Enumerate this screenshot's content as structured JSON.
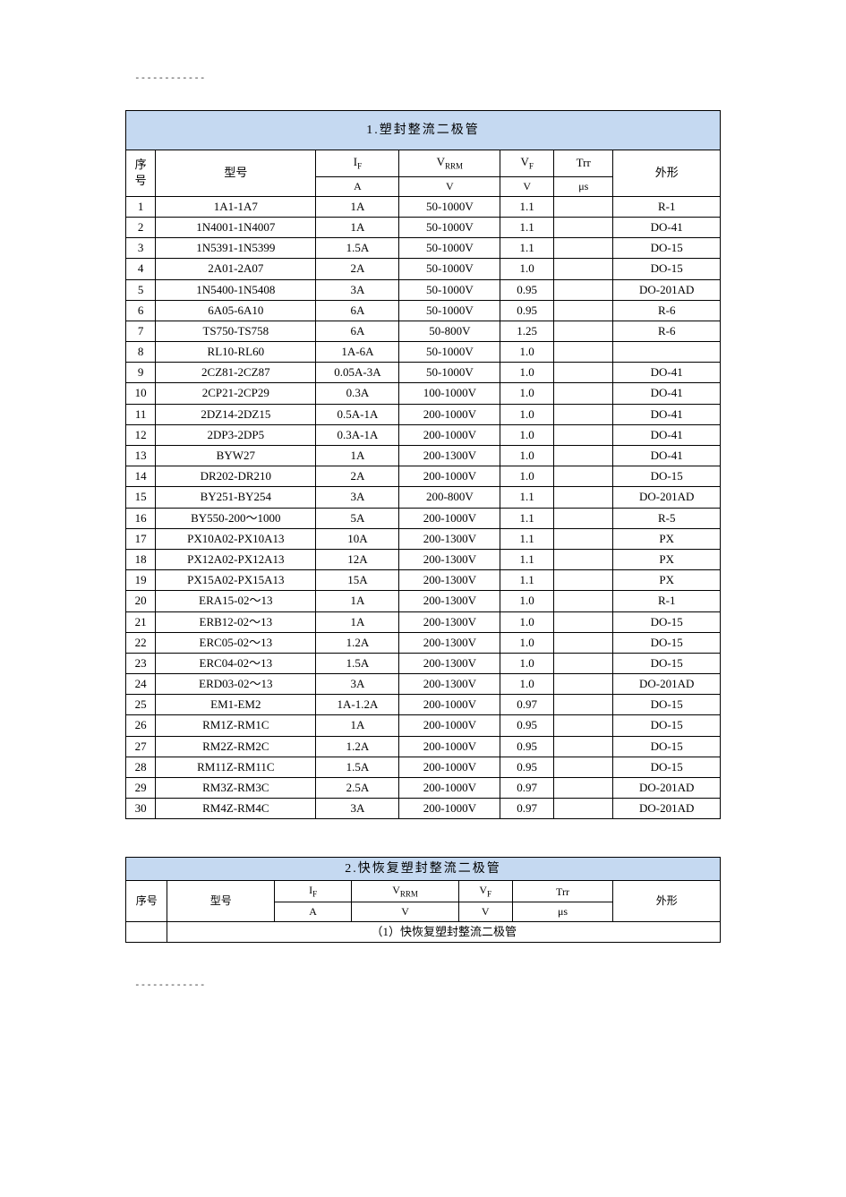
{
  "colors": {
    "header_bg": "#c5d9f1",
    "border": "#000000",
    "text": "#000000",
    "page_bg": "#ffffff"
  },
  "typography": {
    "base_family": "SimSun",
    "base_size_pt": 10,
    "title_size_pt": 11
  },
  "decor": {
    "dash_line": "------------"
  },
  "table1": {
    "title": "1.塑封整流二极管",
    "columns": {
      "seq": {
        "label": "序号",
        "unit": ""
      },
      "model": {
        "label": "型号",
        "unit": ""
      },
      "if": {
        "label_html": "I<sub>F</sub>",
        "unit": "A"
      },
      "vrrm": {
        "label_html": "V<sub>RRM</sub>",
        "unit": "V"
      },
      "vf": {
        "label_html": "V<sub>F</sub>",
        "unit": "V"
      },
      "trr": {
        "label": "Trr",
        "unit": "μs"
      },
      "shape": {
        "label": "外形",
        "unit": ""
      }
    },
    "rows": [
      [
        "1",
        "1A1-1A7",
        "1A",
        "50-1000V",
        "1.1",
        "",
        "R-1"
      ],
      [
        "2",
        "1N4001-1N4007",
        "1A",
        "50-1000V",
        "1.1",
        "",
        "DO-41"
      ],
      [
        "3",
        "1N5391-1N5399",
        "1.5A",
        "50-1000V",
        "1.1",
        "",
        "DO-15"
      ],
      [
        "4",
        "2A01-2A07",
        "2A",
        "50-1000V",
        "1.0",
        "",
        "DO-15"
      ],
      [
        "5",
        "1N5400-1N5408",
        "3A",
        "50-1000V",
        "0.95",
        "",
        "DO-201AD"
      ],
      [
        "6",
        "6A05-6A10",
        "6A",
        "50-1000V",
        "0.95",
        "",
        "R-6"
      ],
      [
        "7",
        "TS750-TS758",
        "6A",
        "50-800V",
        "1.25",
        "",
        "R-6"
      ],
      [
        "8",
        "RL10-RL60",
        "1A-6A",
        "50-1000V",
        "1.0",
        "",
        ""
      ],
      [
        "9",
        "2CZ81-2CZ87",
        "0.05A-3A",
        "50-1000V",
        "1.0",
        "",
        "DO-41"
      ],
      [
        "10",
        "2CP21-2CP29",
        "0.3A",
        "100-1000V",
        "1.0",
        "",
        "DO-41"
      ],
      [
        "11",
        "2DZ14-2DZ15",
        "0.5A-1A",
        "200-1000V",
        "1.0",
        "",
        "DO-41"
      ],
      [
        "12",
        "2DP3-2DP5",
        "0.3A-1A",
        "200-1000V",
        "1.0",
        "",
        "DO-41"
      ],
      [
        "13",
        "BYW27",
        "1A",
        "200-1300V",
        "1.0",
        "",
        "DO-41"
      ],
      [
        "14",
        "DR202-DR210",
        "2A",
        "200-1000V",
        "1.0",
        "",
        "DO-15"
      ],
      [
        "15",
        "BY251-BY254",
        "3A",
        "200-800V",
        "1.1",
        "",
        "DO-201AD"
      ],
      [
        "16",
        "BY550-200～1000",
        "5A",
        "200-1000V",
        "1.1",
        "",
        "R-5"
      ],
      [
        "17",
        "PX10A02-PX10A13",
        "10A",
        "200-1300V",
        "1.1",
        "",
        "PX"
      ],
      [
        "18",
        "PX12A02-PX12A13",
        "12A",
        "200-1300V",
        "1.1",
        "",
        "PX"
      ],
      [
        "19",
        "PX15A02-PX15A13",
        "15A",
        "200-1300V",
        "1.1",
        "",
        "PX"
      ],
      [
        "20",
        "ERA15-02～13",
        "1A",
        "200-1300V",
        "1.0",
        "",
        "R-1"
      ],
      [
        "21",
        "ERB12-02～13",
        "1A",
        "200-1300V",
        "1.0",
        "",
        "DO-15"
      ],
      [
        "22",
        "ERC05-02～13",
        "1.2A",
        "200-1300V",
        "1.0",
        "",
        "DO-15"
      ],
      [
        "23",
        "ERC04-02～13",
        "1.5A",
        "200-1300V",
        "1.0",
        "",
        "DO-15"
      ],
      [
        "24",
        "ERD03-02～13",
        "3A",
        "200-1300V",
        "1.0",
        "",
        "DO-201AD"
      ],
      [
        "25",
        "EM1-EM2",
        "1A-1.2A",
        "200-1000V",
        "0.97",
        "",
        "DO-15"
      ],
      [
        "26",
        "RM1Z-RM1C",
        "1A",
        "200-1000V",
        "0.95",
        "",
        "DO-15"
      ],
      [
        "27",
        "RM2Z-RM2C",
        "1.2A",
        "200-1000V",
        "0.95",
        "",
        "DO-15"
      ],
      [
        "28",
        "RM11Z-RM11C",
        "1.5A",
        "200-1000V",
        "0.95",
        "",
        "DO-15"
      ],
      [
        "29",
        "RM3Z-RM3C",
        "2.5A",
        "200-1000V",
        "0.97",
        "",
        "DO-201AD"
      ],
      [
        "30",
        "RM4Z-RM4C",
        "3A",
        "200-1000V",
        "0.97",
        "",
        "DO-201AD"
      ]
    ]
  },
  "table2": {
    "title": "2.快恢复塑封整流二极管",
    "subtitle": "（1）快恢复塑封整流二极管",
    "columns": {
      "seq": {
        "label": "序号",
        "unit": ""
      },
      "model": {
        "label": "型号",
        "unit": ""
      },
      "if": {
        "label_html": "I<sub>F</sub>",
        "unit": "A"
      },
      "vrrm": {
        "label_html": "V<sub>RRM</sub>",
        "unit": "V"
      },
      "vf": {
        "label_html": "V<sub>F</sub>",
        "unit": "V"
      },
      "trr": {
        "label": "Trr",
        "unit": "μs"
      },
      "shape": {
        "label": "外形",
        "unit": ""
      }
    }
  }
}
